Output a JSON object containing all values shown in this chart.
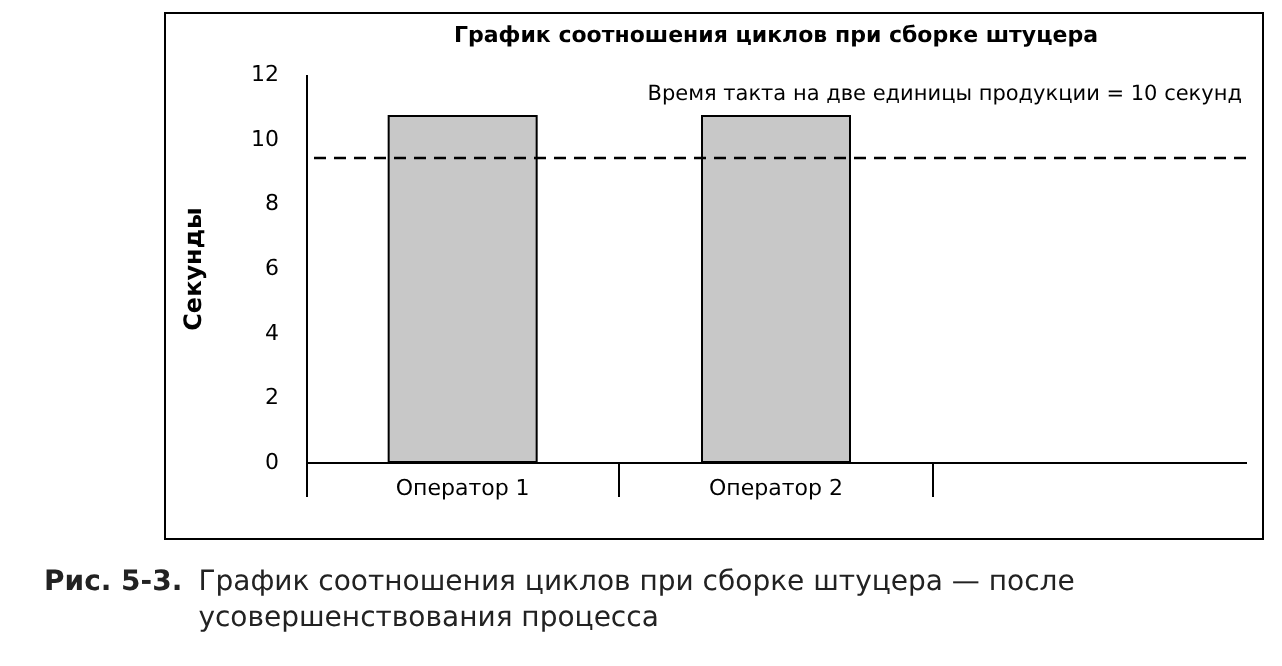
{
  "chart_data": {
    "type": "bar",
    "title": "График соотношения циклов при сборке штуцера",
    "ylabel": "Секунды",
    "categories": [
      "Оператор 1",
      "Оператор 2",
      null
    ],
    "values": [
      10.7,
      10.7,
      null
    ],
    "color": "#c8c8c8",
    "ylim": [
      0,
      12
    ],
    "yticks": [
      0,
      2,
      4,
      6,
      8,
      10,
      12
    ],
    "grid": false,
    "ref_lines": [
      {
        "axis": "y",
        "value": 9.4,
        "line_style": "dashed",
        "color": "#000000"
      }
    ],
    "annotations": [
      "Время такта на две единицы продукции = 10 секунд",
      "Рис. 5-3.",
      "График соотношения циклов при сборке штуцера — после усовершенствования процесса"
    ]
  }
}
